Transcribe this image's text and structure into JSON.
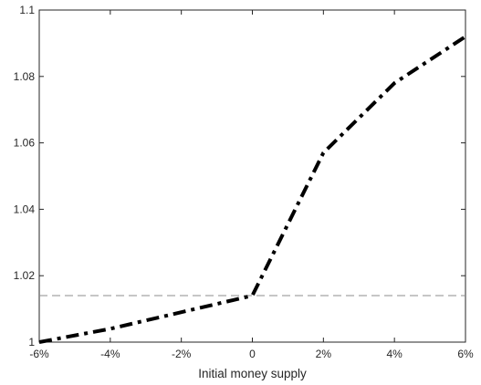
{
  "chart_data": {
    "type": "line",
    "title": "",
    "xlabel": "Initial money supply",
    "ylabel": "",
    "categories": [
      "-6%",
      "-4%",
      "-2%",
      "0",
      "2%",
      "4%",
      "6%"
    ],
    "x": [
      -6,
      -4,
      -2,
      0,
      2,
      4,
      6
    ],
    "xlim": [
      -6,
      6
    ],
    "ylim": [
      1,
      1.1
    ],
    "y_ticks": [
      1,
      1.02,
      1.04,
      1.06,
      1.08,
      1.1
    ],
    "y_tick_labels": [
      "1",
      "1.02",
      "1.04",
      "1.06",
      "1.08",
      "1.1"
    ],
    "series": [
      {
        "values": [
          1.0,
          1.004,
          1.009,
          1.014,
          1.057,
          1.078,
          1.092
        ],
        "color": "#000000",
        "style": "dash-dot"
      }
    ],
    "reference_line": {
      "y": 1.014,
      "color": "#8c8c8c",
      "style": "dashed"
    },
    "grid": false,
    "legend": "none"
  }
}
